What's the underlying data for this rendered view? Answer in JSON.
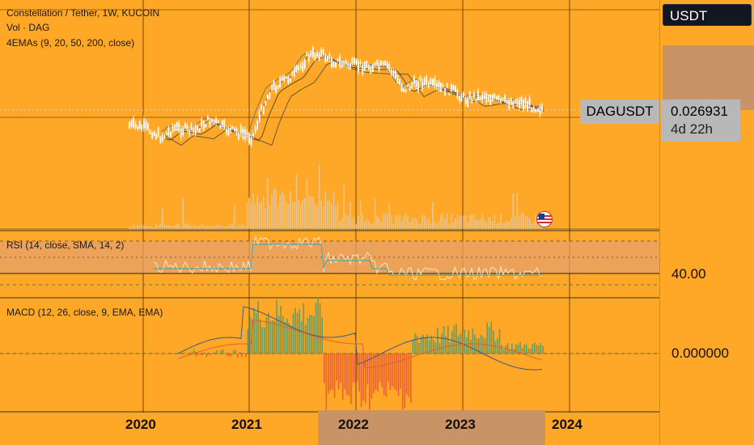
{
  "header": {
    "title": "Constellation / Tether, 1W, KUCOIN",
    "volume": "Vol · DAG",
    "emas": "4EMAs (9, 20, 50, 200, close)",
    "rsi": "RSI (14, close, SMA, 14, 2)",
    "macd": "MACD (12, 26, close, 9, EMA, EMA)"
  },
  "price_axis": {
    "currency": "USDT",
    "symbol": "DAGUSDT",
    "price": "0.026931",
    "countdown": "4d 22h",
    "rsi_value": "40.00",
    "macd_value": "0.000000"
  },
  "time_axis": {
    "years": [
      "2020",
      "2021",
      "2022",
      "2023",
      "2024"
    ]
  },
  "icons": {
    "flag": "us-flag-icon"
  },
  "colors": {
    "background": "#FFA726",
    "candle": "#FFFFFF",
    "macd_up": "#4E9A6B",
    "macd_down": "#E8533A",
    "highlight": "#C99465",
    "tag": "#B8B8B8"
  }
}
